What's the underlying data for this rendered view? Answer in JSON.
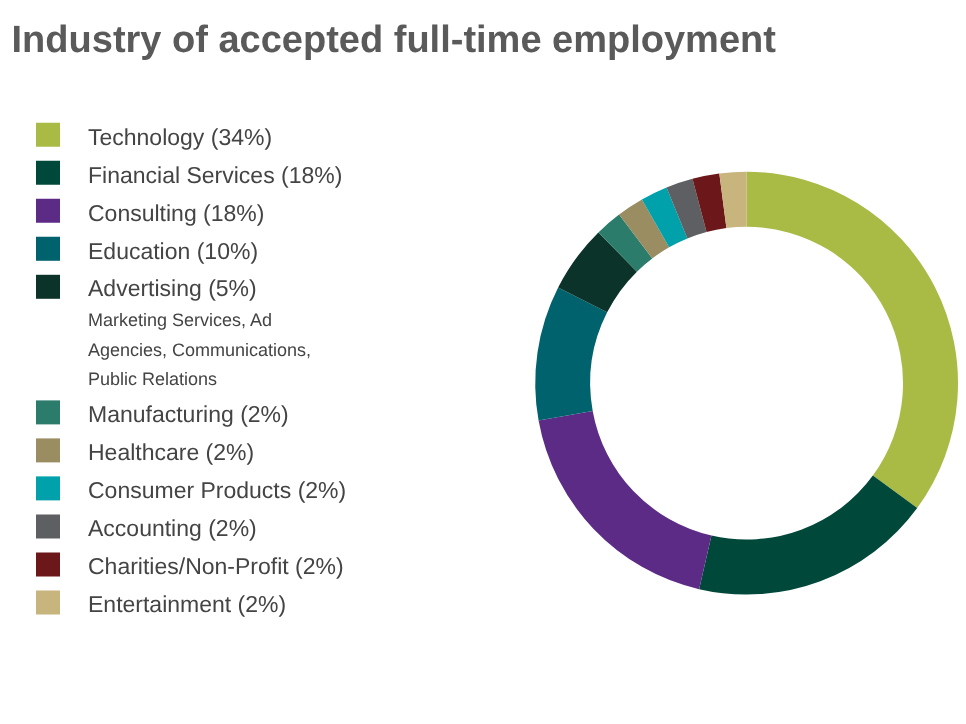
{
  "chart_data": {
    "type": "donut",
    "title": "Industry of accepted full-time employment",
    "categories": [
      "Technology (34%)",
      "Financial Services (18%)",
      "Consulting (18%)",
      "Education (10%)",
      "Advertising (5%)",
      "Manufacturing (2%)",
      "Healthcare (2%)",
      "Consumer Products (2%)",
      "Accounting (2%)",
      "Charities/Non-Profit (2%)",
      "Entertainment (2%)"
    ],
    "values": [
      34,
      18,
      18,
      10,
      5,
      2,
      2,
      2,
      2,
      2,
      2
    ],
    "colors": [
      "#a9bb45",
      "#00483a",
      "#5b2b86",
      "#00626c",
      "#0b3329",
      "#2b7c6b",
      "#9b8d62",
      "#00a1aa",
      "#5e5f62",
      "#6c1719",
      "#c8b47d"
    ],
    "annotations": [
      {
        "text": "Marketing Services, Ad Agencies, Communications, Public Relations",
        "x": "Advertising (5%)"
      }
    ],
    "legend": "left"
  }
}
